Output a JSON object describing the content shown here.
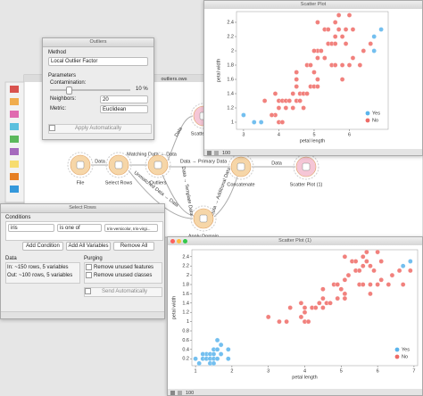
{
  "canvas": {
    "title": "outliers.ows",
    "nodes": [
      {
        "label": "File"
      },
      {
        "label": "Select Rows"
      },
      {
        "label": "Outliers"
      },
      {
        "label": "Scatter Plot"
      },
      {
        "label": "Concatenate"
      },
      {
        "label": "Scatter Plot (1)"
      },
      {
        "label": "Apply Domain"
      }
    ],
    "links": [
      "Data",
      "Matching Data → Data",
      "Data → Primary Data",
      "Unmatched Data → Data",
      "Data → Template Data",
      "Data → Additional Data",
      "Data",
      "Data"
    ]
  },
  "outliers": {
    "title": "Outliers",
    "method_label": "Method",
    "method": "Local Outlier Factor",
    "parameters_label": "Parameters",
    "contamination_label": "Contamination:",
    "contamination": 10,
    "contamination_unit": "%",
    "neighbors_label": "Neighbors:",
    "neighbors": 20,
    "metric_label": "Metric:",
    "metric": "Euclidean",
    "apply": "Apply Automatically"
  },
  "select_rows": {
    "title": "Select Rows",
    "conditions_label": "Conditions",
    "condition": {
      "variable": "iris",
      "operator": "is one of",
      "value": "Iris-versicolor, Iris-virgi..."
    },
    "buttons": [
      "Add Condition",
      "Add All Variables",
      "Remove All"
    ],
    "data_label": "Data",
    "data_in": "In: ~150 rows, 5 variables",
    "data_out": "Out: ~100 rows, 5 variables",
    "purging_label": "Purging",
    "purging": [
      "Remove unused features",
      "Remove unused classes"
    ],
    "send": "Send Automatically"
  },
  "chart_data": [
    {
      "type": "scatter",
      "title": "Scatter Plot",
      "x_label": "petal length",
      "y_label": "petal width",
      "sample_count": 100,
      "xlim": [
        2.8,
        7.1
      ],
      "xticks": [
        3,
        4,
        5,
        6
      ],
      "ylim": [
        0.9,
        2.55
      ],
      "yticks": [
        1,
        1.2,
        1.4,
        1.6,
        1.8,
        2,
        2.2,
        2.4
      ],
      "legend": "bottom-right",
      "series": [
        {
          "name": "Yes",
          "color": "#5ab4ec",
          "x": [
            3.0,
            3.3,
            3.5,
            6.9,
            6.7,
            6.7
          ],
          "y": [
            1.1,
            1.0,
            1.0,
            2.3,
            2.0,
            2.2
          ]
        },
        {
          "name": "No",
          "color": "#ee6b66",
          "x": [
            3.6,
            3.9,
            3.9,
            4.0,
            4.0,
            4.0,
            4.1,
            4.1,
            4.2,
            4.2,
            4.3,
            4.4,
            4.4,
            4.5,
            4.5,
            4.6,
            4.7,
            4.7,
            4.8,
            4.9,
            4.5,
            4.8,
            5.0,
            5.1,
            4.9,
            5.0,
            5.1,
            5.1,
            5.1,
            5.1,
            5.3,
            5.4,
            5.5,
            5.5,
            5.6,
            5.6,
            5.7,
            5.7,
            5.8,
            5.8,
            5.9,
            5.9,
            6.0,
            6.0,
            6.1,
            6.1,
            5.3,
            5.2,
            5.6,
            5.6,
            5.4,
            5.8,
            6.3,
            6.6,
            6.4,
            5.0,
            4.5,
            4.6,
            3.8
          ],
          "y": [
            1.3,
            1.1,
            1.4,
            1.0,
            1.2,
            1.3,
            1.0,
            1.3,
            1.2,
            1.3,
            1.3,
            1.2,
            1.4,
            1.5,
            1.3,
            1.4,
            1.4,
            1.2,
            1.8,
            1.5,
            1.7,
            1.4,
            1.7,
            1.6,
            1.8,
            1.5,
            1.5,
            1.9,
            2.0,
            2.4,
            2.3,
            2.1,
            1.8,
            2.1,
            2.4,
            1.8,
            2.3,
            2.5,
            2.2,
            1.8,
            2.1,
            2.3,
            1.8,
            2.5,
            1.9,
            2.3,
            1.9,
            2.0,
            2.1,
            2.2,
            2.3,
            1.6,
            1.8,
            2.1,
            2.0,
            2.0,
            1.6,
            1.3,
            1.1
          ]
        }
      ]
    },
    {
      "type": "scatter",
      "title": "Scatter Plot (1)",
      "x_label": "petal length",
      "y_label": "petal width",
      "sample_count": 100,
      "xlim": [
        0.9,
        7.1
      ],
      "xticks": [
        1,
        2,
        3,
        4,
        5,
        6,
        7
      ],
      "ylim": [
        0.05,
        2.55
      ],
      "yticks": [
        0.2,
        0.4,
        0.6,
        0.8,
        1,
        1.2,
        1.4,
        1.6,
        1.8,
        2,
        2.2,
        2.4
      ],
      "legend": "bottom-right",
      "series": [
        {
          "name": "Yes",
          "color": "#5ab4ec",
          "x": [
            1.0,
            1.1,
            1.2,
            1.3,
            1.3,
            1.4,
            1.4,
            1.4,
            1.5,
            1.5,
            1.5,
            1.6,
            1.6,
            1.7,
            1.7,
            1.9,
            1.9,
            1.6,
            1.2,
            1.5,
            6.7,
            6.9
          ],
          "y": [
            0.2,
            0.1,
            0.2,
            0.2,
            0.3,
            0.1,
            0.2,
            0.3,
            0.1,
            0.2,
            0.4,
            0.2,
            0.4,
            0.3,
            0.5,
            0.2,
            0.4,
            0.6,
            0.3,
            0.3,
            2.2,
            2.3
          ]
        },
        {
          "name": "No",
          "color": "#ee6b66",
          "x": [
            3.0,
            3.3,
            3.5,
            3.6,
            3.9,
            3.9,
            4.0,
            4.0,
            4.0,
            4.1,
            4.2,
            4.3,
            4.4,
            4.5,
            4.5,
            4.6,
            4.7,
            4.8,
            4.9,
            4.5,
            5.0,
            5.1,
            4.9,
            5.1,
            5.1,
            5.1,
            5.3,
            5.4,
            5.5,
            5.5,
            5.6,
            5.6,
            5.7,
            5.7,
            5.8,
            5.8,
            5.9,
            6.0,
            6.0,
            6.1,
            6.1,
            5.2,
            5.6,
            5.4,
            6.3,
            6.6,
            6.4,
            6.7,
            6.9,
            5.8
          ],
          "y": [
            1.1,
            1.0,
            1.0,
            1.3,
            1.1,
            1.4,
            1.0,
            1.2,
            1.3,
            1.0,
            1.3,
            1.3,
            1.4,
            1.5,
            1.3,
            1.4,
            1.4,
            1.8,
            1.5,
            1.7,
            1.7,
            1.6,
            1.8,
            1.5,
            1.9,
            2.4,
            2.3,
            2.1,
            1.8,
            2.1,
            2.4,
            1.8,
            2.3,
            2.5,
            2.2,
            1.8,
            2.1,
            1.8,
            2.5,
            1.9,
            2.3,
            2.0,
            2.2,
            2.3,
            1.8,
            2.1,
            2.0,
            1.8,
            2.1,
            1.6
          ]
        }
      ]
    }
  ]
}
